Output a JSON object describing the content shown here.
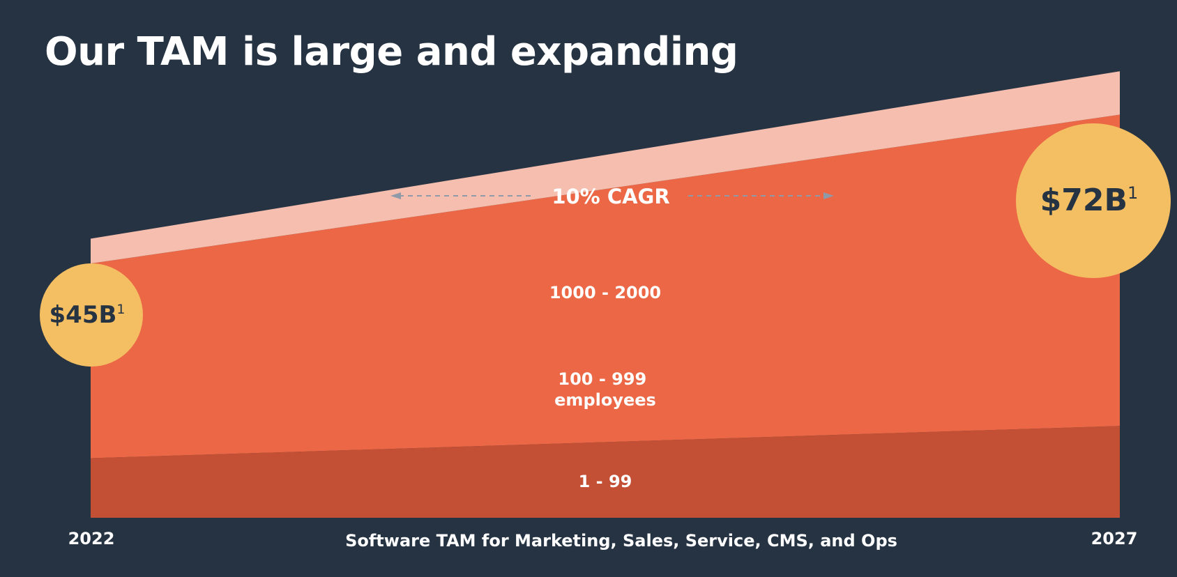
{
  "title": "Our TAM is large and expanding",
  "chart_data": {
    "type": "area",
    "stacked": true,
    "x": [
      "2022",
      "2027"
    ],
    "series": [
      {
        "name": "1 - 99",
        "values": [
          9.6,
          14.8
        ],
        "color": "#C34F34"
      },
      {
        "name": "100 - 999 employees",
        "values": [
          31.4,
          50.2
        ],
        "color": "#EB6745"
      },
      {
        "name": "1000 - 2000",
        "values": [
          4.0,
          7.0
        ],
        "color": "#F5BEAE"
      }
    ],
    "totals": [
      {
        "x": "2022",
        "label": "$45B",
        "sup": "1"
      },
      {
        "x": "2027",
        "label": "$72B",
        "sup": "1"
      }
    ],
    "cagr_label": "10% CAGR",
    "xlabel": "Software TAM for Marketing, Sales, Service, CMS, and Ops",
    "colors": {
      "background": "#253343",
      "bubble": "#F4BE62",
      "arrow": "#8E9AA8"
    }
  }
}
